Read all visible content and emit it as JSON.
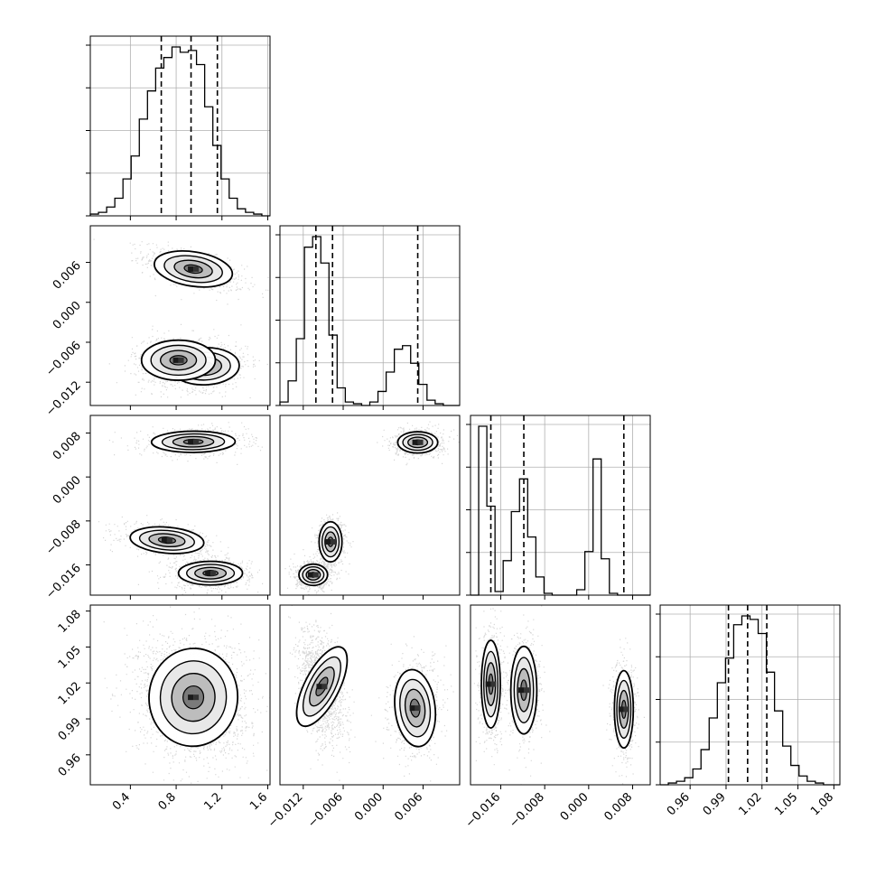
{
  "chart_data": {
    "type": "corner",
    "params": [
      {
        "range": [
          0.05,
          1.62
        ],
        "ticks": [
          "0.4",
          "0.8",
          "1.2",
          "1.6"
        ],
        "tick_values": [
          0.4,
          0.8,
          1.2,
          1.6
        ],
        "quantiles": [
          0.67,
          0.93,
          1.16
        ]
      },
      {
        "range": [
          -0.0155,
          0.0115
        ],
        "ticks": [
          "-0.012",
          "-0.006",
          "0.000",
          "0.006"
        ],
        "tick_values": [
          -0.012,
          -0.006,
          0.0,
          0.006
        ],
        "quantiles": [
          -0.0101,
          -0.0076,
          0.0052
        ]
      },
      {
        "range": [
          -0.0215,
          0.0112
        ],
        "ticks": [
          "-0.016",
          "-0.008",
          "0.000",
          "0.008"
        ],
        "tick_values": [
          -0.016,
          -0.008,
          0.0,
          0.008
        ],
        "quantiles": [
          -0.0178,
          -0.0118,
          0.0064
        ]
      },
      {
        "range": [
          0.935,
          1.085
        ],
        "ticks": [
          "0.96",
          "0.99",
          "1.02",
          "1.05",
          "1.08"
        ],
        "tick_values": [
          0.96,
          0.99,
          1.02,
          1.05,
          1.08
        ],
        "quantiles": [
          0.992,
          1.008,
          1.024
        ]
      }
    ],
    "histograms": [
      {
        "param": 0,
        "bins": 22,
        "counts": [
          1,
          2,
          5,
          10,
          21,
          34,
          55,
          71,
          84,
          90,
          96,
          93,
          94,
          86,
          62,
          40,
          21,
          10,
          4,
          2,
          1,
          0
        ]
      },
      {
        "param": 1,
        "bins": 22,
        "counts": [
          2,
          14,
          38,
          90,
          96,
          81,
          40,
          10,
          2,
          1,
          0,
          2,
          8,
          19,
          32,
          34,
          24,
          12,
          3,
          1,
          0,
          0
        ]
      },
      {
        "param": 2,
        "bins": 22,
        "counts": [
          0,
          93,
          49,
          2,
          19,
          46,
          64,
          32,
          10,
          1,
          0,
          0,
          0,
          3,
          24,
          75,
          20,
          1,
          0,
          0,
          0,
          0
        ]
      },
      {
        "param": 3,
        "bins": 22,
        "counts": [
          0,
          1,
          2,
          4,
          9,
          20,
          38,
          58,
          72,
          91,
          96,
          94,
          86,
          64,
          42,
          22,
          11,
          5,
          2,
          1,
          0,
          0
        ]
      }
    ],
    "joint_panels": [
      {
        "x": 0,
        "y": 1,
        "modes": [
          {
            "cx": 0.95,
            "cy": 0.005,
            "sx": 0.16,
            "sy": 0.0012,
            "rho": -0.6,
            "w": 0.36
          },
          {
            "cx": 1.05,
            "cy": -0.0096,
            "sx": 0.14,
            "sy": 0.0013,
            "rho": 0.1,
            "w": 0.34
          },
          {
            "cx": 0.82,
            "cy": -0.0087,
            "sx": 0.15,
            "sy": 0.0014,
            "rho": 0.0,
            "w": 0.3
          }
        ]
      },
      {
        "x": 0,
        "y": 2,
        "modes": [
          {
            "cx": 0.95,
            "cy": 0.0064,
            "sx": 0.17,
            "sy": 0.0009,
            "rho": 0.05,
            "w": 0.34
          },
          {
            "cx": 0.72,
            "cy": -0.0115,
            "sx": 0.15,
            "sy": 0.0011,
            "rho": -0.4,
            "w": 0.3
          },
          {
            "cx": 1.1,
            "cy": -0.0175,
            "sx": 0.13,
            "sy": 0.001,
            "rho": 0.0,
            "w": 0.36
          }
        ]
      },
      {
        "x": 0,
        "y": 3,
        "modes": [
          {
            "cx": 0.95,
            "cy": 1.008,
            "sx": 0.18,
            "sy": 0.019,
            "rho": -0.1,
            "w": 1.0
          }
        ]
      },
      {
        "x": 1,
        "y": 2,
        "modes": [
          {
            "cx": 0.0052,
            "cy": 0.0063,
            "sx": 0.0014,
            "sy": 0.0009,
            "rho": 0.0,
            "w": 0.34
          },
          {
            "cx": -0.0079,
            "cy": -0.0118,
            "sx": 0.0008,
            "sy": 0.0017,
            "rho": 0.0,
            "w": 0.3
          },
          {
            "cx": -0.0105,
            "cy": -0.0178,
            "sx": 0.001,
            "sy": 0.0009,
            "rho": 0.0,
            "w": 0.36
          }
        ]
      },
      {
        "x": 1,
        "y": 3,
        "modes": [
          {
            "cx": -0.0092,
            "cy": 1.017,
            "sx": 0.0012,
            "sy": 0.017,
            "rho": -0.4,
            "w": 0.66
          },
          {
            "cx": 0.0048,
            "cy": 0.999,
            "sx": 0.0014,
            "sy": 0.015,
            "rho": 0.1,
            "w": 0.34
          }
        ]
      },
      {
        "x": 2,
        "y": 3,
        "modes": [
          {
            "cx": -0.0178,
            "cy": 1.019,
            "sx": 0.0008,
            "sy": 0.017,
            "rho": 0.0,
            "w": 0.36
          },
          {
            "cx": -0.0118,
            "cy": 1.014,
            "sx": 0.0011,
            "sy": 0.017,
            "rho": 0.0,
            "w": 0.3
          },
          {
            "cx": 0.0064,
            "cy": 0.998,
            "sx": 0.0008,
            "sy": 0.015,
            "rho": 0.0,
            "w": 0.34
          }
        ]
      }
    ],
    "grid": true,
    "title": "",
    "axis_labels": [
      "",
      "",
      "",
      ""
    ]
  }
}
